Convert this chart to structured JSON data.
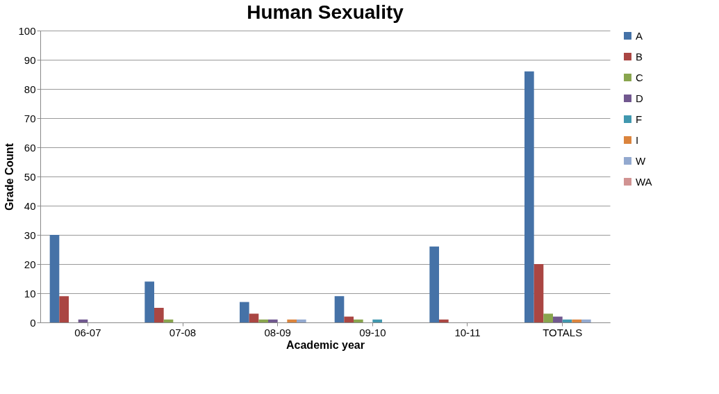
{
  "chart_data": {
    "type": "bar",
    "title": "Human Sexuality",
    "xlabel": "Academic year",
    "ylabel": "Grade Count",
    "categories": [
      "06-07",
      "07-08",
      "08-09",
      "09-10",
      "10-11",
      "TOTALS"
    ],
    "series": [
      {
        "name": "A",
        "color": "#4572a7",
        "values": [
          30,
          14,
          7,
          9,
          26,
          86
        ]
      },
      {
        "name": "B",
        "color": "#aa4643",
        "values": [
          9,
          5,
          3,
          2,
          1,
          20
        ]
      },
      {
        "name": "C",
        "color": "#89a54e",
        "values": [
          0,
          1,
          1,
          1,
          0,
          3
        ]
      },
      {
        "name": "D",
        "color": "#71588f",
        "values": [
          1,
          0,
          1,
          0,
          0,
          2
        ]
      },
      {
        "name": "F",
        "color": "#4198af",
        "values": [
          0,
          0,
          0,
          1,
          0,
          1
        ]
      },
      {
        "name": "I",
        "color": "#db843d",
        "values": [
          0,
          0,
          1,
          0,
          0,
          1
        ]
      },
      {
        "name": "W",
        "color": "#93a9cf",
        "values": [
          0,
          0,
          1,
          0,
          0,
          1
        ]
      },
      {
        "name": "WA",
        "color": "#d19392",
        "values": [
          0,
          0,
          0,
          0,
          0,
          0
        ]
      }
    ],
    "ylim": [
      0,
      100
    ],
    "yticks": [
      0,
      10,
      20,
      30,
      40,
      50,
      60,
      70,
      80,
      90,
      100
    ],
    "grid": "y",
    "legend": "right"
  }
}
